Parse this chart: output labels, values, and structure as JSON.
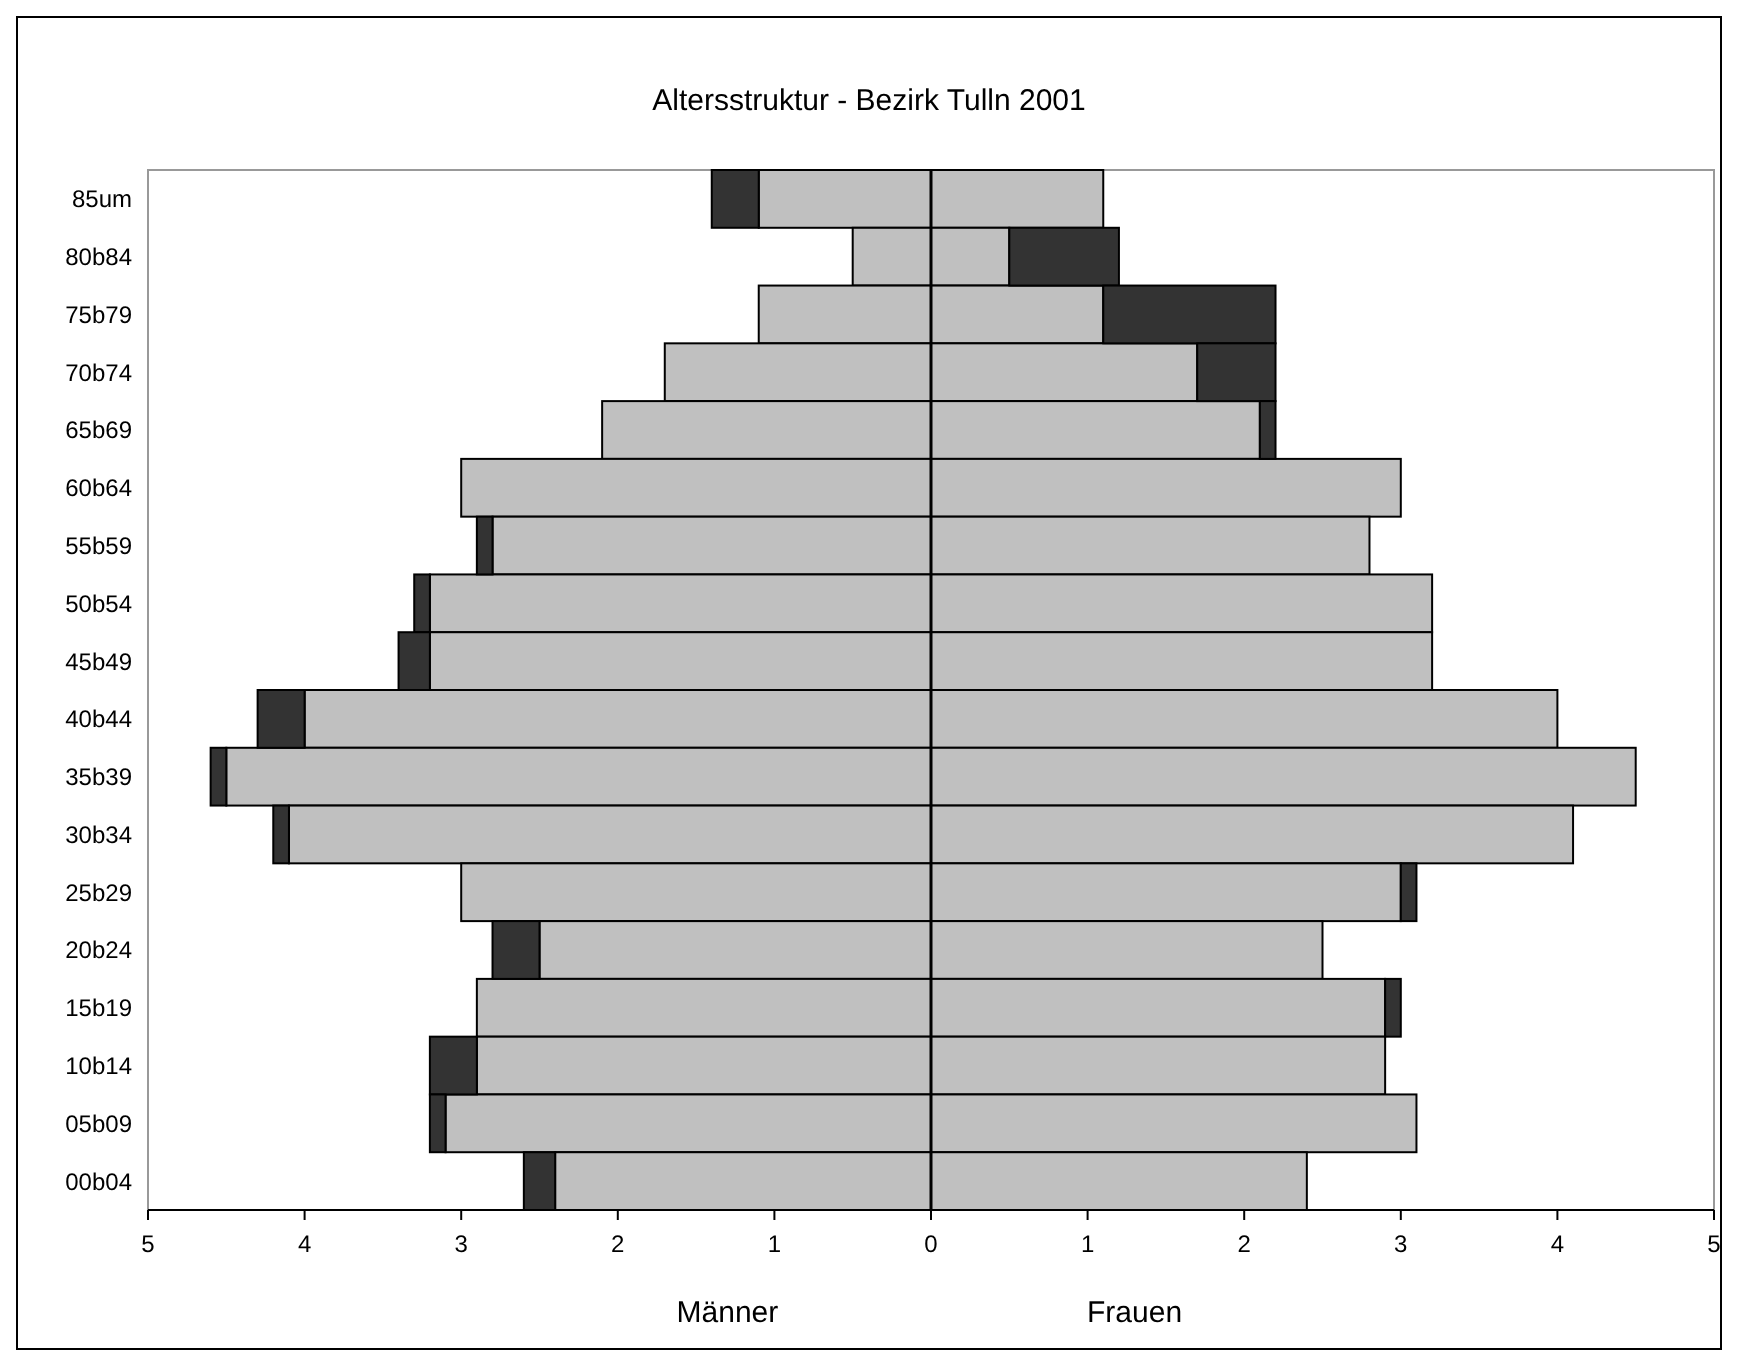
{
  "chart_data": {
    "type": "bar",
    "orientation": "horizontal",
    "stacked": true,
    "title": "Altersstruktur - Bezirk Tulln 2001",
    "categories": [
      "85um",
      "80b84",
      "75b79",
      "70b74",
      "65b69",
      "60b64",
      "55b59",
      "50b54",
      "45b49",
      "40b44",
      "35b39",
      "30b34",
      "25b29",
      "20b24",
      "15b19",
      "10b14",
      "05b09",
      "00b04"
    ],
    "series": [
      {
        "color": "#c0c0c0",
        "values": [
          -1.1,
          -0.5,
          -1.1,
          -1.7,
          -2.1,
          -3.0,
          -2.8,
          -3.2,
          -3.2,
          -4.0,
          -4.5,
          -4.1,
          -3.0,
          -2.5,
          -2.9,
          -2.9,
          -3.1,
          -2.4
        ]
      },
      {
        "color": "#333333",
        "values": [
          -0.3,
          null,
          null,
          null,
          null,
          null,
          -0.1,
          -0.1,
          -0.2,
          -0.3,
          -0.1,
          -0.1,
          null,
          -0.3,
          null,
          -0.3,
          -0.1,
          -0.2
        ]
      },
      {
        "color": "#c0c0c0",
        "values": [
          1.1,
          0.5,
          1.1,
          1.7,
          2.1,
          3.0,
          2.8,
          3.2,
          3.2,
          4.0,
          4.5,
          4.1,
          3.0,
          2.5,
          2.9,
          2.9,
          3.1,
          2.4
        ]
      },
      {
        "color": "#333333",
        "values": [
          null,
          0.7,
          1.1,
          0.5,
          0.1,
          null,
          null,
          null,
          null,
          null,
          null,
          null,
          0.1,
          null,
          0.1,
          null,
          null,
          null
        ]
      }
    ],
    "xlim": [
      -5,
      5
    ],
    "xticks": [
      {
        "value": -5,
        "label": "5"
      },
      {
        "value": -4,
        "label": "4"
      },
      {
        "value": -3,
        "label": "3"
      },
      {
        "value": -2,
        "label": "2"
      },
      {
        "value": -1,
        "label": "1"
      },
      0,
      1,
      2,
      3,
      4,
      5
    ],
    "annotations": [
      "Männer",
      "Frauen"
    ]
  }
}
